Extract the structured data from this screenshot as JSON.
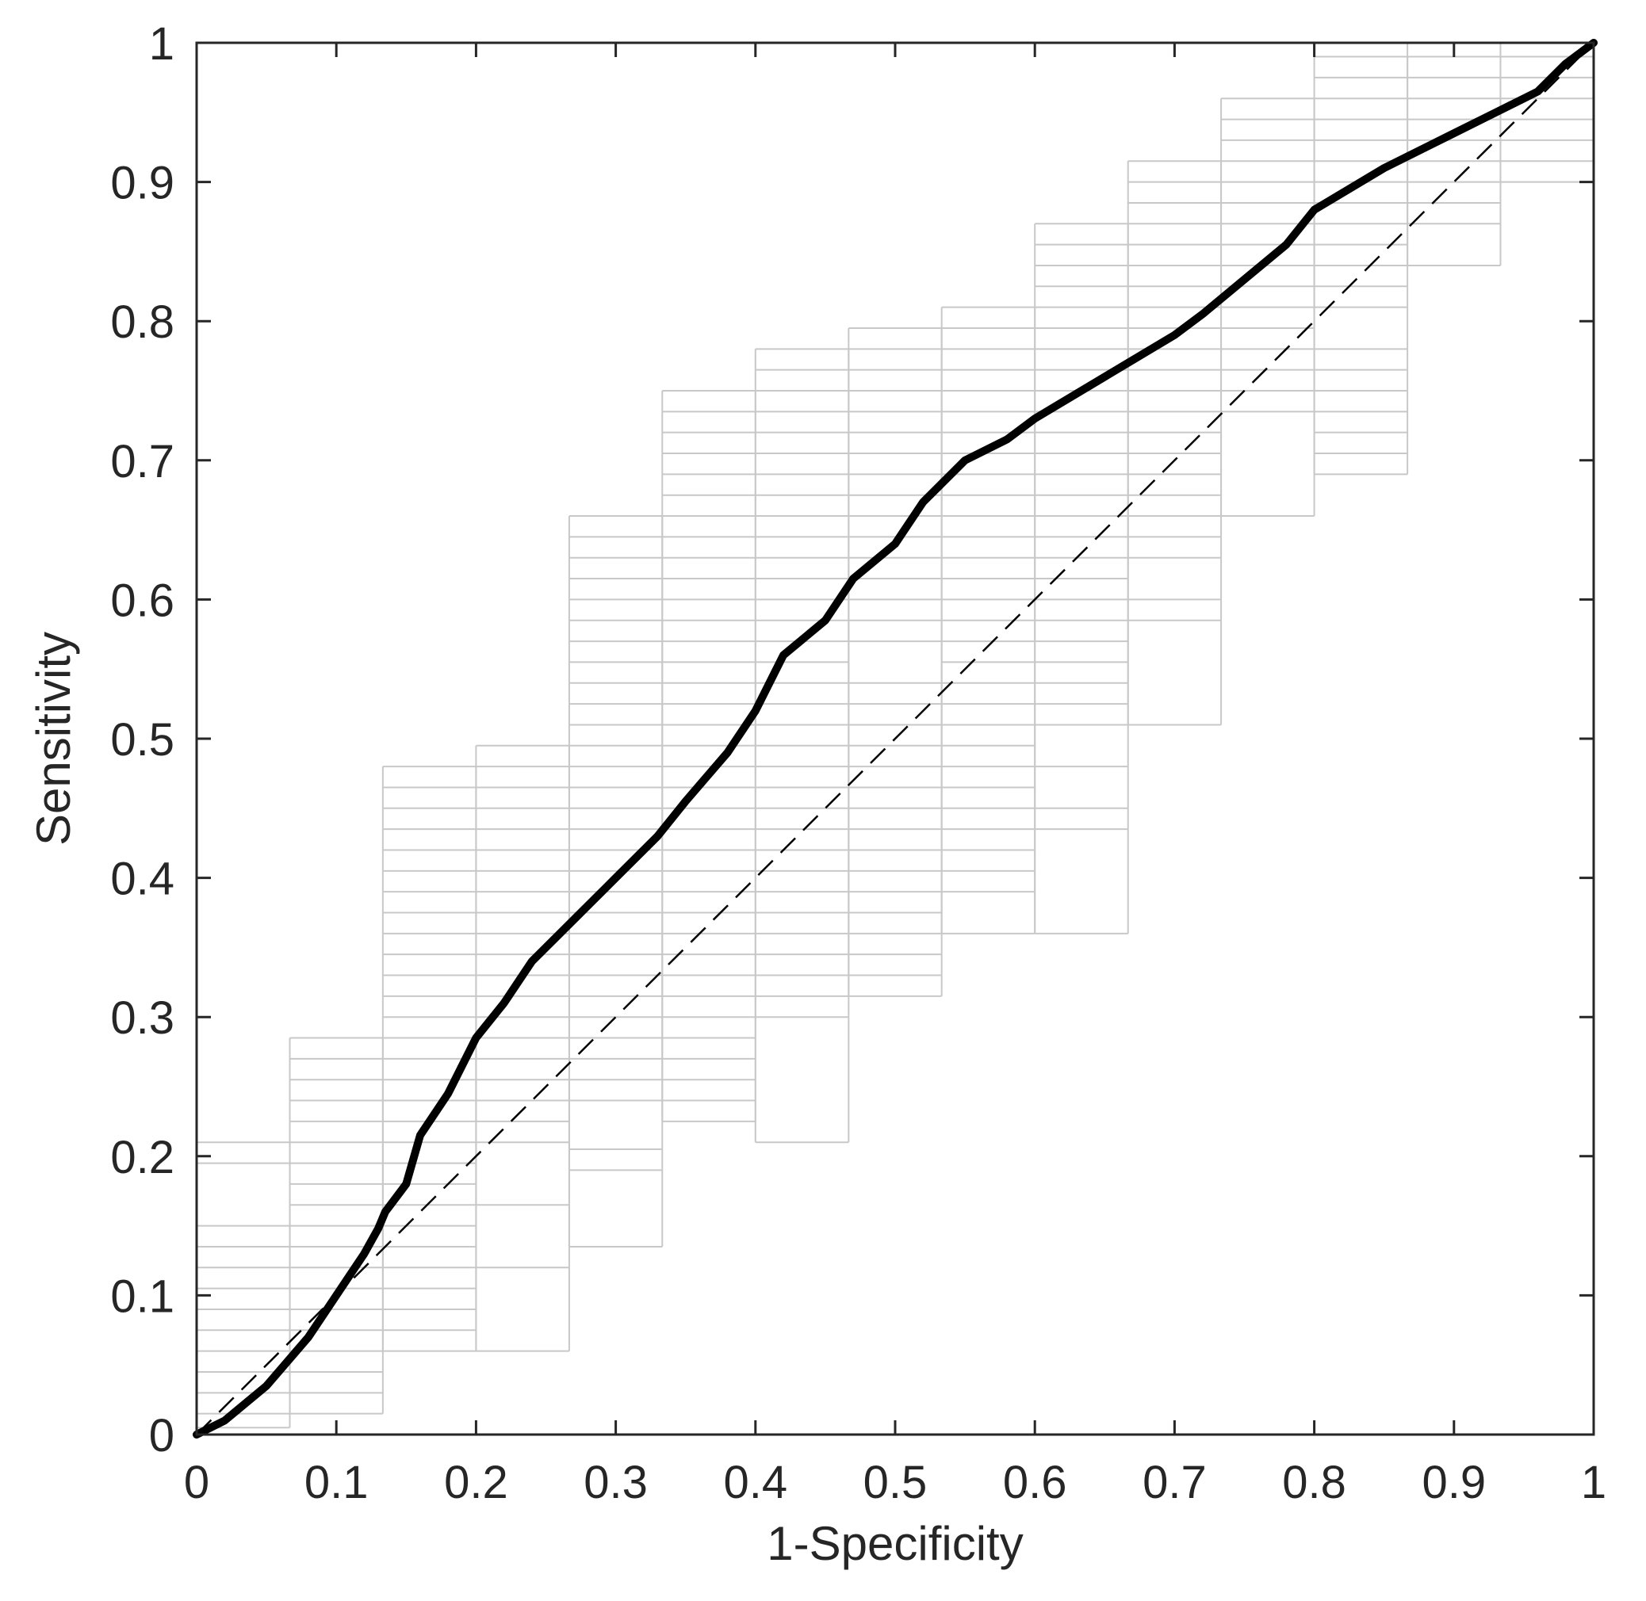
{
  "chart_data": {
    "type": "line",
    "title": "",
    "xlabel": "1-Specificity",
    "ylabel": "Sensitivity",
    "xlim": [
      0,
      1
    ],
    "ylim": [
      0,
      1
    ],
    "xticks": [
      0,
      0.1,
      0.2,
      0.3,
      0.4,
      0.5,
      0.6,
      0.7,
      0.8,
      0.9,
      1
    ],
    "yticks": [
      0,
      0.1,
      0.2,
      0.3,
      0.4,
      0.5,
      0.6,
      0.7,
      0.8,
      0.9,
      1
    ],
    "xtick_labels": [
      "0",
      "0.1",
      "0.2",
      "0.3",
      "0.4",
      "0.5",
      "0.6",
      "0.7",
      "0.8",
      "0.9",
      "1"
    ],
    "ytick_labels": [
      "0",
      "0.1",
      "0.2",
      "0.3",
      "0.4",
      "0.5",
      "0.6",
      "0.7",
      "0.8",
      "0.9",
      "1"
    ],
    "grid": false,
    "legend": "none",
    "colors": {
      "roc": "#000000",
      "reference": "#000000",
      "steps": "#c8c8c8",
      "axes": "#262626"
    },
    "series": [
      {
        "style": "solid-thick",
        "x": [
          0,
          0.02,
          0.05,
          0.08,
          0.1,
          0.12,
          0.13,
          0.135,
          0.15,
          0.16,
          0.18,
          0.2,
          0.22,
          0.24,
          0.27,
          0.3,
          0.33,
          0.35,
          0.38,
          0.4,
          0.42,
          0.45,
          0.47,
          0.5,
          0.52,
          0.55,
          0.58,
          0.6,
          0.65,
          0.7,
          0.72,
          0.75,
          0.78,
          0.8,
          0.85,
          0.88,
          0.9,
          0.93,
          0.96,
          0.98,
          1
        ],
        "y": [
          0,
          0.01,
          0.035,
          0.07,
          0.1,
          0.13,
          0.148,
          0.16,
          0.18,
          0.215,
          0.245,
          0.285,
          0.31,
          0.34,
          0.37,
          0.4,
          0.43,
          0.455,
          0.49,
          0.52,
          0.56,
          0.585,
          0.615,
          0.64,
          0.67,
          0.7,
          0.715,
          0.73,
          0.76,
          0.79,
          0.805,
          0.83,
          0.855,
          0.88,
          0.91,
          0.925,
          0.935,
          0.95,
          0.965,
          0.985,
          1
        ]
      },
      {
        "style": "dashed",
        "x": [
          0,
          1
        ],
        "y": [
          0,
          1
        ]
      }
    ],
    "step_columns": [
      {
        "x0": 0.0,
        "x1": 0.0667,
        "lines": [
          0.005,
          0.015,
          0.03,
          0.045,
          0.06,
          0.075,
          0.09,
          0.105,
          0.12,
          0.135,
          0.15,
          0.195,
          0.21
        ]
      },
      {
        "x0": 0.0667,
        "x1": 0.1333,
        "lines": [
          0.015,
          0.03,
          0.045,
          0.06,
          0.075,
          0.09,
          0.105,
          0.12,
          0.135,
          0.15,
          0.165,
          0.18,
          0.195,
          0.21,
          0.225,
          0.24,
          0.255,
          0.27,
          0.285
        ]
      },
      {
        "x0": 0.1333,
        "x1": 0.2,
        "lines": [
          0.06,
          0.075,
          0.09,
          0.105,
          0.12,
          0.135,
          0.15,
          0.165,
          0.18,
          0.195,
          0.21,
          0.225,
          0.24,
          0.255,
          0.27,
          0.285,
          0.3,
          0.315,
          0.33,
          0.345,
          0.36,
          0.375,
          0.39,
          0.405,
          0.42,
          0.435,
          0.45,
          0.465,
          0.48
        ]
      },
      {
        "x0": 0.2,
        "x1": 0.2667,
        "lines": [
          0.06,
          0.12,
          0.165,
          0.21,
          0.225,
          0.24,
          0.255,
          0.27,
          0.285,
          0.3,
          0.315,
          0.33,
          0.345,
          0.36,
          0.375,
          0.39,
          0.405,
          0.42,
          0.435,
          0.45,
          0.465,
          0.48,
          0.495
        ]
      },
      {
        "x0": 0.2667,
        "x1": 0.3333,
        "lines": [
          0.135,
          0.19,
          0.205,
          0.24,
          0.255,
          0.27,
          0.285,
          0.3,
          0.315,
          0.33,
          0.345,
          0.36,
          0.375,
          0.39,
          0.405,
          0.42,
          0.435,
          0.45,
          0.465,
          0.48,
          0.495,
          0.51,
          0.525,
          0.54,
          0.555,
          0.57,
          0.585,
          0.6,
          0.615,
          0.63,
          0.645,
          0.66
        ]
      },
      {
        "x0": 0.3333,
        "x1": 0.4,
        "lines": [
          0.225,
          0.24,
          0.255,
          0.27,
          0.285,
          0.3,
          0.315,
          0.33,
          0.345,
          0.36,
          0.375,
          0.39,
          0.405,
          0.42,
          0.435,
          0.45,
          0.465,
          0.48,
          0.495,
          0.51,
          0.525,
          0.54,
          0.555,
          0.57,
          0.585,
          0.6,
          0.615,
          0.63,
          0.645,
          0.66,
          0.675,
          0.69,
          0.705,
          0.72,
          0.735,
          0.75
        ]
      },
      {
        "x0": 0.4,
        "x1": 0.4667,
        "lines": [
          0.21,
          0.3,
          0.315,
          0.33,
          0.345,
          0.36,
          0.375,
          0.39,
          0.405,
          0.42,
          0.435,
          0.45,
          0.465,
          0.48,
          0.495,
          0.51,
          0.525,
          0.54,
          0.555,
          0.57,
          0.585,
          0.6,
          0.615,
          0.63,
          0.645,
          0.66,
          0.675,
          0.69,
          0.705,
          0.72,
          0.735,
          0.75,
          0.765,
          0.78
        ]
      },
      {
        "x0": 0.4667,
        "x1": 0.5333,
        "lines": [
          0.315,
          0.33,
          0.345,
          0.36,
          0.375,
          0.39,
          0.405,
          0.42,
          0.435,
          0.45,
          0.465,
          0.48,
          0.495,
          0.51,
          0.525,
          0.54,
          0.57,
          0.585,
          0.6,
          0.615,
          0.63,
          0.645,
          0.66,
          0.675,
          0.69,
          0.705,
          0.72,
          0.735,
          0.75,
          0.765,
          0.78,
          0.795
        ]
      },
      {
        "x0": 0.5333,
        "x1": 0.6,
        "lines": [
          0.36,
          0.39,
          0.405,
          0.42,
          0.435,
          0.45,
          0.465,
          0.48,
          0.495,
          0.51,
          0.525,
          0.54,
          0.555,
          0.57,
          0.585,
          0.6,
          0.615,
          0.63,
          0.645,
          0.66,
          0.675,
          0.69,
          0.705,
          0.72,
          0.735,
          0.75,
          0.765,
          0.78,
          0.795,
          0.81
        ]
      },
      {
        "x0": 0.6,
        "x1": 0.6667,
        "lines": [
          0.36,
          0.435,
          0.45,
          0.48,
          0.51,
          0.525,
          0.54,
          0.555,
          0.57,
          0.585,
          0.6,
          0.615,
          0.63,
          0.645,
          0.66,
          0.675,
          0.69,
          0.705,
          0.72,
          0.735,
          0.75,
          0.765,
          0.78,
          0.795,
          0.81,
          0.825,
          0.84,
          0.855,
          0.87
        ]
      },
      {
        "x0": 0.6667,
        "x1": 0.7333,
        "lines": [
          0.51,
          0.585,
          0.6,
          0.63,
          0.645,
          0.66,
          0.675,
          0.69,
          0.705,
          0.72,
          0.735,
          0.75,
          0.765,
          0.78,
          0.795,
          0.81,
          0.825,
          0.84,
          0.855,
          0.87,
          0.885,
          0.9,
          0.915
        ]
      },
      {
        "x0": 0.7333,
        "x1": 0.8,
        "lines": [
          0.66,
          0.735,
          0.75,
          0.765,
          0.78,
          0.795,
          0.81,
          0.825,
          0.84,
          0.855,
          0.87,
          0.885,
          0.9,
          0.915,
          0.93,
          0.945,
          0.96
        ]
      },
      {
        "x0": 0.8,
        "x1": 0.8667,
        "lines": [
          0.69,
          0.705,
          0.72,
          0.735,
          0.75,
          0.765,
          0.78,
          0.81,
          0.825,
          0.84,
          0.855,
          0.87,
          0.885,
          0.9,
          0.915,
          0.93,
          0.945,
          0.96,
          0.975,
          0.99
        ]
      },
      {
        "x0": 0.8667,
        "x1": 0.9333,
        "lines": [
          0.84,
          0.87,
          0.885,
          0.9,
          0.915,
          0.93,
          0.945,
          0.96,
          0.975,
          0.99,
          1.0
        ]
      },
      {
        "x0": 0.9333,
        "x1": 1.0,
        "lines": [
          0.9,
          0.915,
          0.93,
          0.945,
          0.96,
          0.975,
          0.99,
          1.0
        ]
      }
    ]
  }
}
